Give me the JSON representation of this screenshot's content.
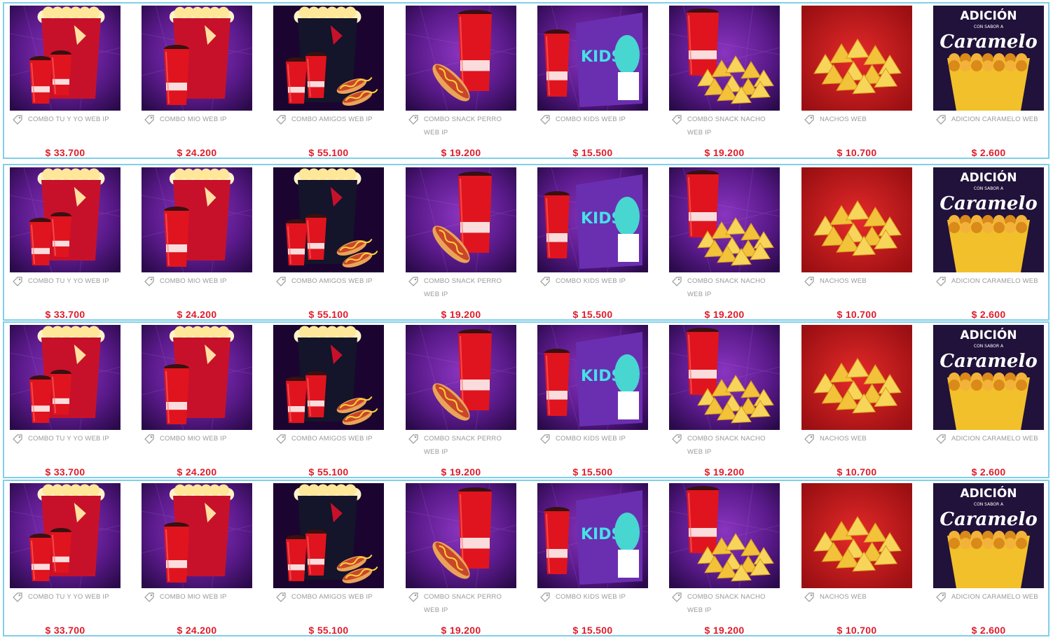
{
  "colors": {
    "row_border": "#7fd0e8",
    "price": "#e21c2a",
    "label": "#9a9a9a",
    "purple_bg": "#5a1a8a",
    "red_bg": "#c5161c"
  },
  "rows": [
    {
      "items": [
        {
          "image": "combo-tu-y-yo-image",
          "label": "COMBO TU Y YO WEB IP",
          "price": "$ 33.700"
        },
        {
          "image": "combo-mio-image",
          "label": "COMBO MIO WEB IP",
          "price": "$ 24.200"
        },
        {
          "image": "combo-amigos-image",
          "label": "COMBO AMIGOS WEB IP",
          "price": "$ 55.100"
        },
        {
          "image": "combo-snack-perro-image",
          "label": "COMBO SNACK PERRO WEB IP",
          "price": "$ 19.200"
        },
        {
          "image": "combo-kids-image",
          "label": "COMBO KIDS WEB IP",
          "price": "$ 15.500"
        },
        {
          "image": "combo-snack-nacho-image",
          "label": "COMBO SNACK NACHO WEB IP",
          "price": "$ 19.200"
        },
        {
          "image": "nachos-image",
          "label": "NACHOS WEB",
          "price": "$ 10.700"
        },
        {
          "image": "adicion-caramelo-image",
          "label": "ADICION CARAMELO WEB",
          "price": "$ 2.600"
        }
      ]
    },
    {
      "items": [
        {
          "image": "combo-tu-y-yo-image",
          "label": "COMBO TU Y YO WEB IP",
          "price": "$ 33.700"
        },
        {
          "image": "combo-mio-image",
          "label": "COMBO MIO WEB IP",
          "price": "$ 24.200"
        },
        {
          "image": "combo-amigos-image",
          "label": "COMBO AMIGOS WEB IP",
          "price": "$ 55.100"
        },
        {
          "image": "combo-snack-perro-image",
          "label": "COMBO SNACK PERRO WEB IP",
          "price": "$ 19.200"
        },
        {
          "image": "combo-kids-image",
          "label": "COMBO KIDS WEB IP",
          "price": "$ 15.500"
        },
        {
          "image": "combo-snack-nacho-image",
          "label": "COMBO SNACK NACHO WEB IP",
          "price": "$ 19.200"
        },
        {
          "image": "nachos-image",
          "label": "NACHOS WEB",
          "price": "$ 10.700"
        },
        {
          "image": "adicion-caramelo-image",
          "label": "ADICION CARAMELO WEB",
          "price": "$ 2.600"
        }
      ]
    },
    {
      "items": [
        {
          "image": "combo-tu-y-yo-image",
          "label": "COMBO TU Y YO WEB IP",
          "price": "$ 33.700"
        },
        {
          "image": "combo-mio-image",
          "label": "COMBO MIO WEB IP",
          "price": "$ 24.200"
        },
        {
          "image": "combo-amigos-image",
          "label": "COMBO AMIGOS WEB IP",
          "price": "$ 55.100"
        },
        {
          "image": "combo-snack-perro-image",
          "label": "COMBO SNACK PERRO WEB IP",
          "price": "$ 19.200"
        },
        {
          "image": "combo-kids-image",
          "label": "COMBO KIDS WEB IP",
          "price": "$ 15.500"
        },
        {
          "image": "combo-snack-nacho-image",
          "label": "COMBO SNACK NACHO WEB IP",
          "price": "$ 19.200"
        },
        {
          "image": "nachos-image",
          "label": "NACHOS WEB",
          "price": "$ 10.700"
        },
        {
          "image": "adicion-caramelo-image",
          "label": "ADICION CARAMELO WEB",
          "price": "$ 2.600"
        }
      ]
    },
    {
      "items": [
        {
          "image": "combo-tu-y-yo-image",
          "label": "COMBO TU Y YO WEB IP",
          "price": "$ 33.700"
        },
        {
          "image": "combo-mio-image",
          "label": "COMBO MIO WEB IP",
          "price": "$ 24.200"
        },
        {
          "image": "combo-amigos-image",
          "label": "COMBO AMIGOS WEB IP",
          "price": "$ 55.100"
        },
        {
          "image": "combo-snack-perro-image",
          "label": "COMBO SNACK PERRO WEB IP",
          "price": "$ 19.200"
        },
        {
          "image": "combo-kids-image",
          "label": "COMBO KIDS WEB IP",
          "price": "$ 15.500"
        },
        {
          "image": "combo-snack-nacho-image",
          "label": "COMBO SNACK NACHO WEB IP",
          "price": "$ 19.200"
        },
        {
          "image": "nachos-image",
          "label": "NACHOS WEB",
          "price": "$ 10.700"
        },
        {
          "image": "adicion-caramelo-image",
          "label": "ADICION CARAMELO WEB",
          "price": "$ 2.600"
        }
      ]
    }
  ],
  "caramelo_sign": {
    "title": "ADICIÓN",
    "sub": "CON SABOR A",
    "script": "Caramelo"
  },
  "kids_box_text": "KIDS"
}
